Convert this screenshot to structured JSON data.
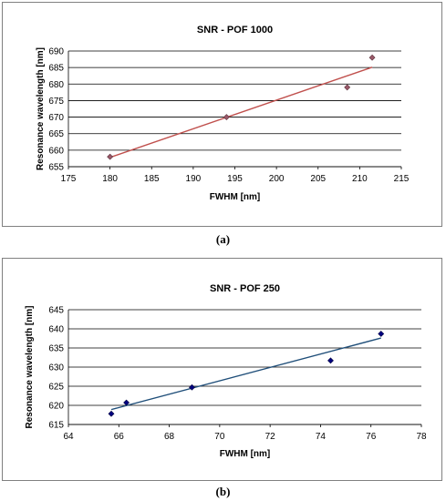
{
  "chart_data": [
    {
      "type": "scatter",
      "title": "SNR  - POF 1000",
      "xlabel": "FWHM [nm]",
      "ylabel": "Resonance wavelength [nm]",
      "xlim": [
        175,
        215
      ],
      "ylim": [
        655,
        690
      ],
      "xticks": [
        175,
        180,
        185,
        190,
        195,
        200,
        205,
        210,
        215
      ],
      "yticks": [
        655,
        660,
        665,
        670,
        675,
        680,
        685,
        690
      ],
      "grid": "horizontal",
      "marker_color": "#9B5A6A",
      "line_color": "#C0504D",
      "points": [
        {
          "x": 180,
          "y": 658
        },
        {
          "x": 194,
          "y": 670
        },
        {
          "x": 208.5,
          "y": 679
        },
        {
          "x": 211.5,
          "y": 688
        }
      ],
      "trendline": [
        [
          180,
          657.8
        ],
        [
          211.5,
          685.1
        ]
      ],
      "panel_label": "(a)"
    },
    {
      "type": "scatter",
      "title": "SNR  - POF 250",
      "xlabel": "FWHM [nm]",
      "ylabel": "Resonance wavelength [nm]",
      "xlim": [
        64,
        78
      ],
      "ylim": [
        615,
        645
      ],
      "xticks": [
        64,
        66,
        68,
        70,
        72,
        74,
        76,
        78
      ],
      "yticks": [
        615,
        620,
        625,
        630,
        635,
        640,
        645
      ],
      "grid": "horizontal",
      "marker_color": "#000080",
      "line_color": "#1F4E79",
      "points": [
        {
          "x": 65.7,
          "y": 617.8
        },
        {
          "x": 66.3,
          "y": 620.7
        },
        {
          "x": 68.9,
          "y": 624.7
        },
        {
          "x": 74.4,
          "y": 631.7
        },
        {
          "x": 76.4,
          "y": 638.7
        }
      ],
      "trendline": [
        [
          65.7,
          618.9
        ],
        [
          76.4,
          637.6
        ]
      ],
      "panel_label": "(b)"
    }
  ]
}
